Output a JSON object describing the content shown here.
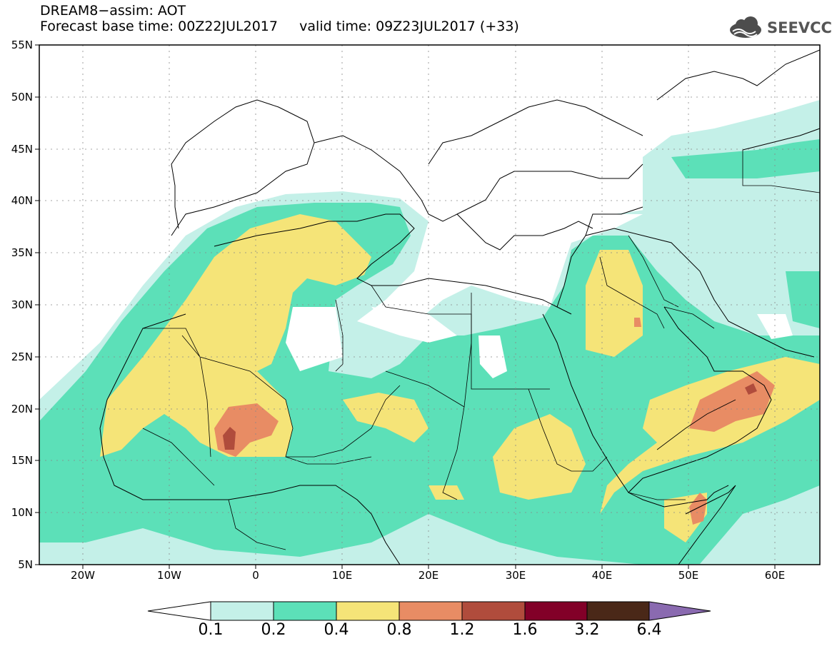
{
  "title": {
    "line1": "DREAM8−assim: AOT",
    "line2": "Forecast base time: 00Z22JUL2017     valid time: 09Z23JUL2017 (+33)"
  },
  "logo": {
    "text": "SEEVCCC",
    "icon": "cloud-icon"
  },
  "axes": {
    "lat_labels": [
      "55N",
      "50N",
      "45N",
      "40N",
      "35N",
      "30N",
      "25N",
      "20N",
      "15N",
      "10N",
      "5N"
    ],
    "lon_labels": [
      "20W",
      "10W",
      "0",
      "10E",
      "20E",
      "30E",
      "40E",
      "50E",
      "60E"
    ],
    "lon_range": [
      -25,
      65
    ],
    "lat_range": [
      5,
      55
    ]
  },
  "colorbar": {
    "labels": [
      "0.1",
      "0.2",
      "0.4",
      "0.8",
      "1.2",
      "1.6",
      "3.2",
      "6.4"
    ],
    "colors": [
      "#ffffff",
      "#c4f0e8",
      "#5ce0b8",
      "#f5e478",
      "#e88c64",
      "#b04c3c",
      "#820028",
      "#4a2818",
      "#8a6ab0"
    ]
  }
}
